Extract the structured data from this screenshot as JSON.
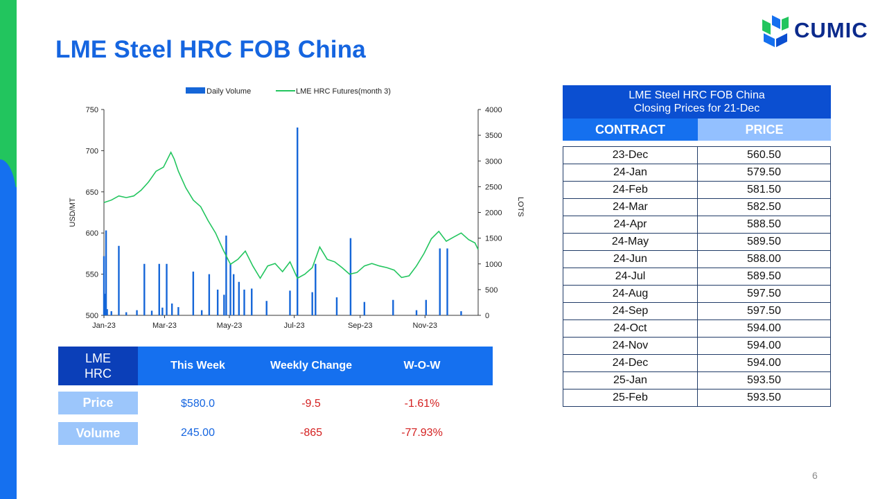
{
  "page": {
    "title": "LME Steel HRC FOB China",
    "logo_text": "CUMIC",
    "page_number": "6",
    "colors": {
      "brand_blue": "#1570ef",
      "dark_blue": "#0b4fd1",
      "accent_green": "#22c55e",
      "negative_red": "#d42020"
    }
  },
  "chart_data": {
    "type": "bar+line",
    "legend": [
      "Daily Volume",
      "LME HRC Futures(month 3)"
    ],
    "legend_position": "top",
    "ylabel_left": "USD/MT",
    "ylabel_right": "LOTS",
    "y_left_lim": [
      500,
      750
    ],
    "y_left_ticks": [
      "750",
      "700",
      "650",
      "600",
      "550",
      "500"
    ],
    "y_right_lim": [
      0,
      4000
    ],
    "y_right_ticks": [
      "4000",
      "3500",
      "3000",
      "2500",
      "2000",
      "1500",
      "1000",
      "500",
      "0"
    ],
    "x_tick_labels": [
      "Jan-23",
      "Mar-23",
      "May-23",
      "Jul-23",
      "Sep-23",
      "Nov-23"
    ],
    "x_ticks": [
      "2023-01-03",
      "2023-03-01",
      "2023-05-01",
      "2023-07-01",
      "2023-09-01",
      "2023-11-01"
    ],
    "x_range": [
      "2023-01-03",
      "2023-12-21"
    ],
    "series": [
      {
        "name": "LME HRC Futures(month 3)",
        "kind": "line",
        "color": "#22c55e",
        "points": [
          [
            "2023-01-03",
            637
          ],
          [
            "2023-01-10",
            640
          ],
          [
            "2023-01-17",
            645
          ],
          [
            "2023-01-24",
            643
          ],
          [
            "2023-01-31",
            645
          ],
          [
            "2023-02-07",
            652
          ],
          [
            "2023-02-14",
            662
          ],
          [
            "2023-02-21",
            675
          ],
          [
            "2023-02-28",
            680
          ],
          [
            "2023-03-07",
            698
          ],
          [
            "2023-03-10",
            690
          ],
          [
            "2023-03-14",
            675
          ],
          [
            "2023-03-21",
            655
          ],
          [
            "2023-03-28",
            640
          ],
          [
            "2023-04-04",
            632
          ],
          [
            "2023-04-11",
            615
          ],
          [
            "2023-04-18",
            600
          ],
          [
            "2023-04-25",
            580
          ],
          [
            "2023-05-02",
            562
          ],
          [
            "2023-05-09",
            568
          ],
          [
            "2023-05-16",
            578
          ],
          [
            "2023-05-23",
            560
          ],
          [
            "2023-05-30",
            545
          ],
          [
            "2023-06-06",
            560
          ],
          [
            "2023-06-13",
            563
          ],
          [
            "2023-06-20",
            553
          ],
          [
            "2023-06-27",
            565
          ],
          [
            "2023-07-04",
            545
          ],
          [
            "2023-07-11",
            550
          ],
          [
            "2023-07-18",
            558
          ],
          [
            "2023-07-25",
            583
          ],
          [
            "2023-08-01",
            568
          ],
          [
            "2023-08-08",
            565
          ],
          [
            "2023-08-15",
            558
          ],
          [
            "2023-08-22",
            550
          ],
          [
            "2023-08-29",
            552
          ],
          [
            "2023-09-05",
            560
          ],
          [
            "2023-09-12",
            563
          ],
          [
            "2023-09-19",
            560
          ],
          [
            "2023-09-26",
            558
          ],
          [
            "2023-10-03",
            555
          ],
          [
            "2023-10-10",
            546
          ],
          [
            "2023-10-17",
            548
          ],
          [
            "2023-10-24",
            560
          ],
          [
            "2023-10-31",
            575
          ],
          [
            "2023-11-07",
            593
          ],
          [
            "2023-11-14",
            602
          ],
          [
            "2023-11-21",
            590
          ],
          [
            "2023-11-28",
            595
          ],
          [
            "2023-12-05",
            600
          ],
          [
            "2023-12-12",
            592
          ],
          [
            "2023-12-18",
            588
          ],
          [
            "2023-12-21",
            580
          ]
        ]
      },
      {
        "name": "Daily Volume",
        "kind": "bar",
        "color": "#1566d8",
        "points": [
          [
            "2023-01-03",
            1150
          ],
          [
            "2023-01-04",
            420
          ],
          [
            "2023-01-05",
            1650
          ],
          [
            "2023-01-06",
            120
          ],
          [
            "2023-01-10",
            80
          ],
          [
            "2023-01-17",
            1350
          ],
          [
            "2023-01-24",
            60
          ],
          [
            "2023-02-03",
            100
          ],
          [
            "2023-02-10",
            1000
          ],
          [
            "2023-02-17",
            90
          ],
          [
            "2023-02-24",
            1000
          ],
          [
            "2023-02-27",
            150
          ],
          [
            "2023-03-03",
            1000
          ],
          [
            "2023-03-08",
            230
          ],
          [
            "2023-03-14",
            160
          ],
          [
            "2023-03-28",
            850
          ],
          [
            "2023-04-05",
            100
          ],
          [
            "2023-04-12",
            800
          ],
          [
            "2023-04-20",
            500
          ],
          [
            "2023-04-26",
            400
          ],
          [
            "2023-04-28",
            1550
          ],
          [
            "2023-05-02",
            1000
          ],
          [
            "2023-05-05",
            800
          ],
          [
            "2023-05-10",
            650
          ],
          [
            "2023-05-15",
            500
          ],
          [
            "2023-05-22",
            520
          ],
          [
            "2023-06-05",
            280
          ],
          [
            "2023-06-27",
            480
          ],
          [
            "2023-07-04",
            3650
          ],
          [
            "2023-07-18",
            450
          ],
          [
            "2023-07-21",
            1000
          ],
          [
            "2023-08-10",
            350
          ],
          [
            "2023-08-23",
            1500
          ],
          [
            "2023-09-05",
            260
          ],
          [
            "2023-10-02",
            300
          ],
          [
            "2023-10-24",
            100
          ],
          [
            "2023-11-02",
            300
          ],
          [
            "2023-11-15",
            1300
          ],
          [
            "2023-11-22",
            1300
          ],
          [
            "2023-12-05",
            80
          ]
        ]
      }
    ]
  },
  "closing_prices": {
    "header_line1": "LME Steel HRC FOB China",
    "header_line2": "Closing Prices for 21-Dec",
    "col_contract": "CONTRACT",
    "col_price": "PRICE",
    "rows": [
      {
        "contract": "23-Dec",
        "price": "560.50"
      },
      {
        "contract": "24-Jan",
        "price": "579.50"
      },
      {
        "contract": "24-Feb",
        "price": "581.50"
      },
      {
        "contract": "24-Mar",
        "price": "582.50"
      },
      {
        "contract": "24-Apr",
        "price": "588.50"
      },
      {
        "contract": "24-May",
        "price": "589.50"
      },
      {
        "contract": "24-Jun",
        "price": "588.00"
      },
      {
        "contract": "24-Jul",
        "price": "589.50"
      },
      {
        "contract": "24-Aug",
        "price": "597.50"
      },
      {
        "contract": "24-Sep",
        "price": "597.50"
      },
      {
        "contract": "24-Oct",
        "price": "594.00"
      },
      {
        "contract": "24-Nov",
        "price": "594.00"
      },
      {
        "contract": "24-Dec",
        "price": "594.00"
      },
      {
        "contract": "25-Jan",
        "price": "593.50"
      },
      {
        "contract": "25-Feb",
        "price": "593.50"
      }
    ]
  },
  "summary": {
    "label_line1": "LME",
    "label_line2": "HRC",
    "col_this_week": "This Week",
    "col_weekly_change": "Weekly Change",
    "col_wow": "W-O-W",
    "price": {
      "label": "Price",
      "this_week": "$580.0",
      "weekly_change": "-9.5",
      "wow": "-1.61%"
    },
    "volume": {
      "label": "Volume",
      "this_week": "245.00",
      "weekly_change": "-865",
      "wow": "-77.93%"
    }
  }
}
